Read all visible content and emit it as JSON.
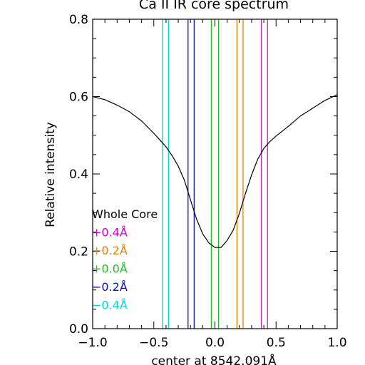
{
  "chart_data": {
    "type": "line",
    "title": "Ca II IR core spectrum",
    "xlabel": "center at 8542.091Å",
    "ylabel": "Relative intensity",
    "xlim": [
      -1.0,
      1.0
    ],
    "ylim": [
      0.0,
      0.8
    ],
    "x_ticks": [
      "−1.0",
      "−0.5",
      "0.0",
      "0.5",
      "1.0"
    ],
    "y_ticks": [
      "0.0",
      "0.2",
      "0.4",
      "0.6",
      "0.8"
    ],
    "grid": false,
    "series": [
      {
        "color": "#000000",
        "x": [
          -1.0,
          -0.9,
          -0.8,
          -0.7,
          -0.6,
          -0.5,
          -0.45,
          -0.4,
          -0.35,
          -0.3,
          -0.25,
          -0.2,
          -0.15,
          -0.1,
          -0.05,
          0.0,
          0.05,
          0.1,
          0.15,
          0.2,
          0.25,
          0.3,
          0.35,
          0.4,
          0.45,
          0.5,
          0.6,
          0.7,
          0.8,
          0.9,
          1.0
        ],
        "y": [
          0.6,
          0.592,
          0.578,
          0.561,
          0.537,
          0.505,
          0.488,
          0.47,
          0.447,
          0.42,
          0.384,
          0.333,
          0.283,
          0.245,
          0.222,
          0.21,
          0.21,
          0.228,
          0.255,
          0.298,
          0.35,
          0.398,
          0.438,
          0.466,
          0.484,
          0.498,
          0.523,
          0.55,
          0.57,
          0.59,
          0.605
        ]
      }
    ],
    "vertical_lines": [
      {
        "x": -0.43,
        "color": "#00d8d8"
      },
      {
        "x": -0.38,
        "color": "#00d8d8"
      },
      {
        "x": -0.22,
        "color": "#1010c0"
      },
      {
        "x": -0.17,
        "color": "#1010c0"
      },
      {
        "x": -0.03,
        "color": "#20c020"
      },
      {
        "x": 0.03,
        "color": "#20c020"
      },
      {
        "x": 0.18,
        "color": "#f07f00"
      },
      {
        "x": 0.23,
        "color": "#f07f00"
      },
      {
        "x": 0.38,
        "color": "#c020c0"
      },
      {
        "x": 0.43,
        "color": "#c020c0"
      }
    ],
    "legend": {
      "placement": "lower-left",
      "entries": [
        {
          "label": "Whole Core",
          "color": "#000000"
        },
        {
          "label": "+0.4Å",
          "color": "#d000d0"
        },
        {
          "label": "+0.2Å",
          "color": "#f07f00"
        },
        {
          "label": "+0.0Å",
          "color": "#20c020"
        },
        {
          "label": "−0.2Å",
          "color": "#1010c0"
        },
        {
          "label": "−0.4Å",
          "color": "#00d8d8"
        }
      ]
    }
  }
}
